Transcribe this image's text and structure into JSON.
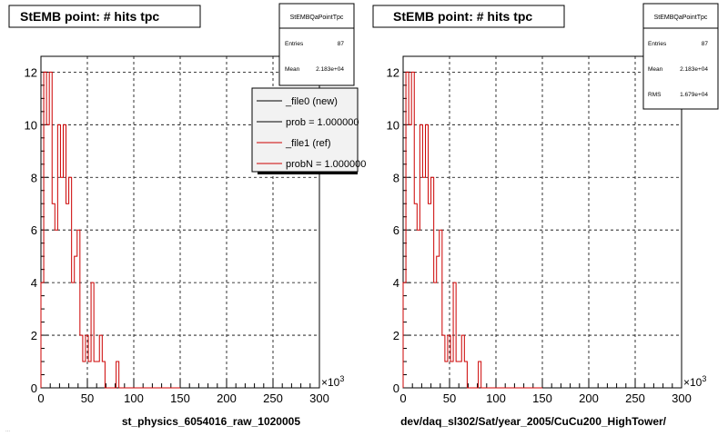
{
  "footer_text": "...",
  "pads": [
    {
      "title": "StEMB point: # hits tpc",
      "xlabel": "st_physics_6054016_raw_1020005",
      "exponent_label": "×10",
      "exponent_power": "3",
      "stats": {
        "name": "StEMBQaPointTpc",
        "rows": [
          {
            "label": "Entries",
            "value": "87"
          },
          {
            "label": "Mean",
            "value": "2.183e+04"
          }
        ]
      },
      "legend": [
        {
          "label": "_file0 (new)",
          "color": "#000000"
        },
        {
          "label": "prob = 1.000000",
          "color": "#000000"
        },
        {
          "label": "_file1 (ref)",
          "color": "#cc0000"
        },
        {
          "label": "probN = 1.000000",
          "color": "#cc0000"
        }
      ]
    },
    {
      "title": "StEMB point: # hits tpc",
      "xlabel": "dev/daq_sl302/Sat/year_2005/CuCu200_HighTower/",
      "exponent_label": "×10",
      "exponent_power": "3",
      "stats": {
        "name": "StEMBQaPointTpc",
        "rows": [
          {
            "label": "Entries",
            "value": "87"
          },
          {
            "label": "Mean",
            "value": "2.183e+04"
          },
          {
            "label": "RMS",
            "value": "1.679e+04"
          }
        ]
      },
      "legend": []
    }
  ],
  "chart_data": [
    {
      "type": "bar",
      "style": "step-histogram",
      "title": "StEMB point: # hits tpc",
      "xlabel": "st_physics_6054016_raw_1020005",
      "x_unit_multiplier": 1000,
      "xlim": [
        0,
        300
      ],
      "ylim": [
        0,
        12.6
      ],
      "x_ticks": [
        0,
        50,
        100,
        150,
        200,
        250,
        300
      ],
      "y_ticks": [
        0,
        2,
        4,
        6,
        8,
        10,
        12
      ],
      "grid": true,
      "legend_placement": "top-right",
      "bin_width": 3,
      "series": [
        {
          "name": "_file1 (ref)",
          "color": "#cc0000",
          "values": [
            4,
            12,
            10,
            12,
            7,
            6,
            10,
            8,
            10,
            7,
            8,
            4,
            5,
            6,
            2,
            1,
            2,
            1,
            4,
            1,
            1,
            2,
            1,
            0,
            0,
            0,
            0,
            1,
            0,
            0,
            0,
            0,
            0,
            0,
            0,
            0,
            0,
            0,
            0,
            0,
            0,
            0,
            0,
            0,
            0,
            0,
            0,
            0,
            0,
            0
          ]
        }
      ]
    },
    {
      "type": "bar",
      "style": "step-histogram",
      "title": "StEMB point: # hits tpc",
      "xlabel": "dev/daq_sl302/Sat/year_2005/CuCu200_HighTower/",
      "x_unit_multiplier": 1000,
      "xlim": [
        0,
        300
      ],
      "ylim": [
        0,
        12.6
      ],
      "x_ticks": [
        0,
        50,
        100,
        150,
        200,
        250,
        300
      ],
      "y_ticks": [
        0,
        2,
        4,
        6,
        8,
        10,
        12
      ],
      "grid": true,
      "bin_width": 3,
      "series": [
        {
          "color": "#cc0000",
          "values": [
            4,
            12,
            10,
            12,
            7,
            6,
            10,
            8,
            10,
            7,
            8,
            4,
            5,
            6,
            2,
            1,
            2,
            1,
            4,
            1,
            1,
            2,
            1,
            0,
            0,
            0,
            0,
            1,
            0,
            0,
            0,
            0,
            0,
            0,
            0,
            0,
            0,
            0,
            0,
            0,
            0,
            0,
            0,
            0,
            0,
            0,
            0,
            0,
            0,
            0
          ]
        }
      ]
    }
  ]
}
